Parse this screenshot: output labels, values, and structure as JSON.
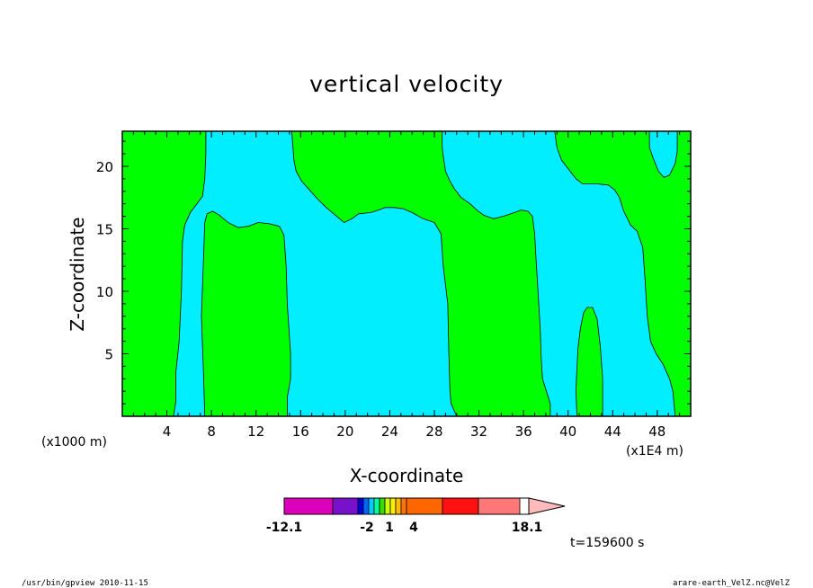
{
  "chart_data": {
    "type": "heatmap",
    "title": "vertical velocity",
    "xlabel": "X-coordinate",
    "ylabel": "Z-coordinate",
    "x_unit_left": "(x1000 m)",
    "x_unit_right": "(x1E4 m)",
    "xlim": [
      0,
      51
    ],
    "ylim": [
      0,
      22.8
    ],
    "xticks": [
      4,
      8,
      12,
      16,
      20,
      24,
      28,
      32,
      36,
      40,
      44,
      48
    ],
    "xtick_labels": [
      "4",
      "8",
      "12",
      "16",
      "20",
      "24",
      "28",
      "32",
      "36",
      "40",
      "44",
      "48"
    ],
    "yticks": [
      5,
      10,
      15,
      20
    ],
    "ytick_labels": [
      "5",
      "10",
      "15",
      "20"
    ],
    "time_label": "t=159600 s",
    "colors": {
      "positive_region": "#00ff00",
      "negative_region": "#00eeff",
      "background": "#ffffff"
    },
    "positive_regions": [
      {
        "name": "left-green",
        "points": [
          [
            0,
            0
          ],
          [
            4.6,
            0
          ],
          [
            4.8,
            1.2
          ],
          [
            4.8,
            3.5
          ],
          [
            5.1,
            6
          ],
          [
            5.3,
            10
          ],
          [
            5.4,
            14
          ],
          [
            5.6,
            15.3
          ],
          [
            6.1,
            16.3
          ],
          [
            6.7,
            17
          ],
          [
            7.2,
            17.6
          ],
          [
            7.4,
            19
          ],
          [
            7.5,
            21
          ],
          [
            7.5,
            22.8
          ],
          [
            0,
            22.8
          ]
        ]
      },
      {
        "name": "green-tongue",
        "points": [
          [
            7.4,
            0
          ],
          [
            7.3,
            3
          ],
          [
            7.1,
            8
          ],
          [
            7.3,
            13
          ],
          [
            7.4,
            15.5
          ],
          [
            7.6,
            16.2
          ],
          [
            8.1,
            16.4
          ],
          [
            8.7,
            16.1
          ],
          [
            9.5,
            15.5
          ],
          [
            10.4,
            15.1
          ],
          [
            11.3,
            15.2
          ],
          [
            12.2,
            15.5
          ],
          [
            13.2,
            15.4
          ],
          [
            14.1,
            15.2
          ],
          [
            14.5,
            14.5
          ],
          [
            14.7,
            12
          ],
          [
            14.8,
            9
          ],
          [
            15.1,
            5
          ],
          [
            15.1,
            3
          ],
          [
            14.8,
            1.5
          ],
          [
            14.8,
            0
          ]
        ]
      },
      {
        "name": "upper-middle-green",
        "points": [
          [
            15.2,
            22.8
          ],
          [
            15.4,
            20.5
          ],
          [
            15.6,
            19.6
          ],
          [
            16.1,
            18.8
          ],
          [
            16.8,
            18.1
          ],
          [
            17.5,
            17.4
          ],
          [
            18.3,
            16.7
          ],
          [
            19.1,
            16.1
          ],
          [
            19.9,
            15.5
          ],
          [
            20.6,
            15.8
          ],
          [
            21.2,
            16.2
          ],
          [
            22.3,
            16.3
          ],
          [
            23,
            16.5
          ],
          [
            23.6,
            16.7
          ],
          [
            24.4,
            16.7
          ],
          [
            25.2,
            16.6
          ],
          [
            26,
            16.3
          ],
          [
            27,
            15.8
          ],
          [
            28,
            15.5
          ],
          [
            28.6,
            14.6
          ],
          [
            28.8,
            12
          ],
          [
            29.2,
            9
          ],
          [
            29.3,
            5
          ],
          [
            29.4,
            2
          ],
          [
            29.5,
            1
          ],
          [
            30,
            0
          ],
          [
            38.4,
            0
          ],
          [
            38.4,
            1
          ],
          [
            37.7,
            3
          ],
          [
            37.6,
            4.5
          ],
          [
            37.5,
            7
          ],
          [
            37.3,
            10
          ],
          [
            37.1,
            13
          ],
          [
            37,
            14.6
          ],
          [
            36.8,
            16
          ],
          [
            36.4,
            16.4
          ],
          [
            35.8,
            16.5
          ],
          [
            35.2,
            16.3
          ],
          [
            34.2,
            16
          ],
          [
            33.3,
            15.8
          ],
          [
            32.4,
            16.1
          ],
          [
            31.8,
            16.5
          ],
          [
            31.2,
            17
          ],
          [
            30.4,
            17.5
          ],
          [
            29.8,
            18.2
          ],
          [
            29.4,
            18.8
          ],
          [
            29,
            19.6
          ],
          [
            28.8,
            20.8
          ],
          [
            28.7,
            21.5
          ],
          [
            28.7,
            22.8
          ]
        ]
      },
      {
        "name": "green-hump",
        "points": [
          [
            40.8,
            0
          ],
          [
            40.7,
            2
          ],
          [
            40.8,
            4
          ],
          [
            40.9,
            5.5
          ],
          [
            41.1,
            7
          ],
          [
            41.4,
            8.3
          ],
          [
            41.7,
            8.7
          ],
          [
            42.2,
            8.7
          ],
          [
            42.6,
            7.8
          ],
          [
            42.9,
            5.5
          ],
          [
            43.1,
            3
          ],
          [
            43.1,
            0
          ]
        ]
      },
      {
        "name": "upper-right-green",
        "points": [
          [
            38.8,
            22.8
          ],
          [
            39,
            21.5
          ],
          [
            39.4,
            20.5
          ],
          [
            40.1,
            19.7
          ],
          [
            40.7,
            19
          ],
          [
            41.3,
            18.6
          ],
          [
            42.5,
            18.6
          ],
          [
            43.6,
            18.5
          ],
          [
            44.2,
            18.1
          ],
          [
            44.6,
            17.5
          ],
          [
            45,
            16.4
          ],
          [
            45.6,
            15.3
          ],
          [
            46.2,
            14.8
          ],
          [
            46.7,
            13.5
          ],
          [
            46.9,
            11
          ],
          [
            47.1,
            8
          ],
          [
            47.4,
            6
          ],
          [
            47.9,
            5
          ],
          [
            48.5,
            4.2
          ],
          [
            49.1,
            3
          ],
          [
            49.4,
            2
          ],
          [
            49.6,
            0
          ],
          [
            51,
            0
          ],
          [
            51,
            22.8
          ],
          [
            49.8,
            22.8
          ],
          [
            49.8,
            21.2
          ],
          [
            49.6,
            20.2
          ],
          [
            49.1,
            19.3
          ],
          [
            48.6,
            19.1
          ],
          [
            48.1,
            19.6
          ],
          [
            47.7,
            20.5
          ],
          [
            47.3,
            21.5
          ],
          [
            47.3,
            22.8
          ]
        ]
      }
    ]
  },
  "colorbar": {
    "colors": [
      "#dd00bb",
      "#7711cc",
      "#0000dd",
      "#0066ff",
      "#00ccff",
      "#00ff99",
      "#33dd00",
      "#ccff00",
      "#ffee00",
      "#ffbb00",
      "#ff7700",
      "#ff6600",
      "#ff1111",
      "#ff7777",
      "#ffbbbb"
    ],
    "tick_labels": {
      "min": "-12.1",
      "a": "-2",
      "b": "1",
      "c": "4",
      "max": "18.1"
    }
  },
  "footer": {
    "left": "/usr/bin/gpview  2010-11-15",
    "right": "arare-earth_VelZ.nc@VelZ"
  }
}
